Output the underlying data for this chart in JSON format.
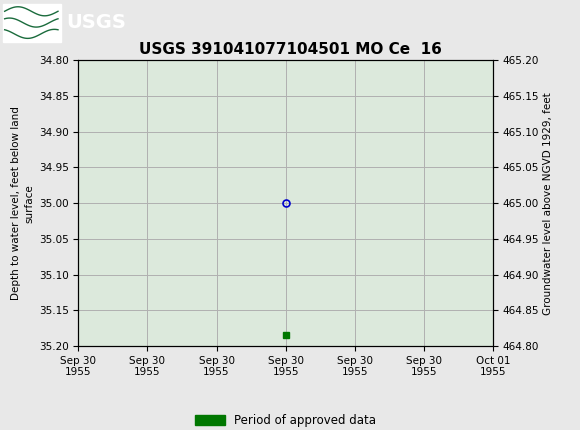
{
  "title": "USGS 391041077104501 MO Ce  16",
  "title_fontsize": 11,
  "header_color": "#1a6b3c",
  "bg_color": "#e8e8e8",
  "plot_bg_color": "#dce9dc",
  "grid_color": "#b0b0b0",
  "left_ylabel": "Depth to water level, feet below land\nsurface",
  "right_ylabel": "Groundwater level above NGVD 1929, feet",
  "ylim_left_top": 34.8,
  "ylim_left_bottom": 35.2,
  "ylim_right_bottom": 464.8,
  "ylim_right_top": 465.2,
  "left_yticks": [
    34.8,
    34.85,
    34.9,
    34.95,
    35.0,
    35.05,
    35.1,
    35.15,
    35.2
  ],
  "right_yticks": [
    465.2,
    465.15,
    465.1,
    465.05,
    465.0,
    464.95,
    464.9,
    464.85,
    464.8
  ],
  "x_tick_labels": [
    "Sep 30\n1955",
    "Sep 30\n1955",
    "Sep 30\n1955",
    "Sep 30\n1955",
    "Sep 30\n1955",
    "Sep 30\n1955",
    "Oct 01\n1955"
  ],
  "data_point_x": 3.0,
  "data_point_y": 35.0,
  "data_point_color": "#0000cc",
  "data_point_marker": "o",
  "data_point_size": 5,
  "green_point_x": 3.0,
  "green_point_y": 35.185,
  "green_point_color": "#007700",
  "green_point_marker": "s",
  "green_point_size": 4,
  "legend_label": "Period of approved data",
  "legend_color": "#007700",
  "tick_fontsize": 7.5,
  "ylabel_fontsize": 7.5,
  "xlim": [
    0,
    6
  ],
  "xtick_positions": [
    0,
    1,
    2,
    3,
    4,
    5,
    6
  ]
}
